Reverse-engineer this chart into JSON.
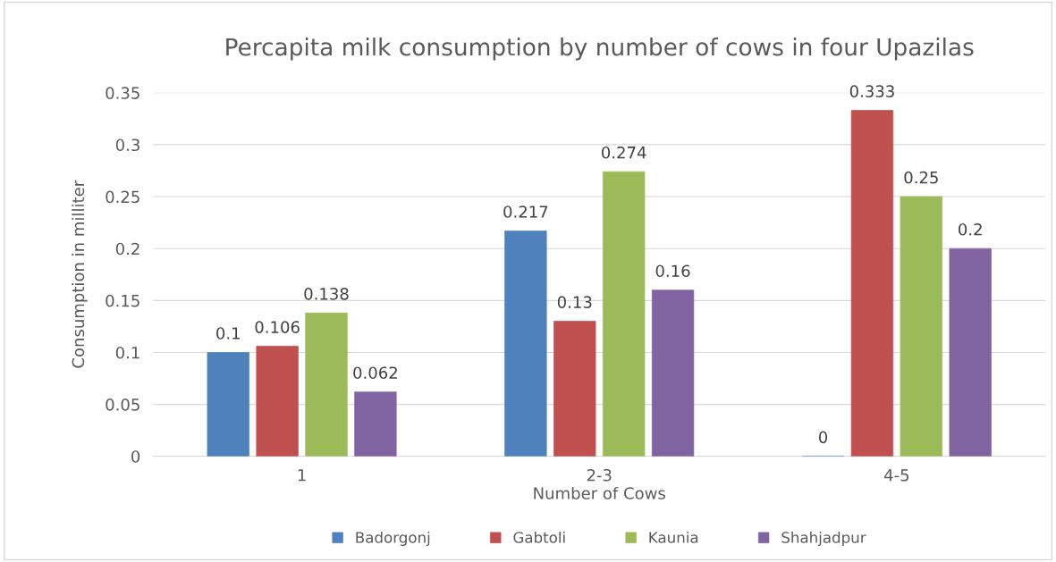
{
  "chart_data": {
    "type": "bar",
    "title": "Percapita milk consumption by number of cows in four Upazilas",
    "xlabel": "Number of Cows",
    "ylabel": "Consumption in milliter",
    "categories": [
      "1",
      "2-3",
      "4-5"
    ],
    "series": [
      {
        "name": "Badorgonj",
        "color": "#4f81bd",
        "values": [
          0.1,
          0.217,
          0
        ]
      },
      {
        "name": "Gabtoli",
        "color": "#c0504d",
        "values": [
          0.106,
          0.13,
          0.333
        ]
      },
      {
        "name": "Kaunia",
        "color": "#9bbb59",
        "values": [
          0.138,
          0.274,
          0.25
        ]
      },
      {
        "name": "Shahjadpur",
        "color": "#8064a2",
        "values": [
          0.062,
          0.16,
          0.2
        ]
      }
    ],
    "ylim": [
      0,
      0.35
    ],
    "yticks": [
      0,
      0.05,
      0.1,
      0.15,
      0.2,
      0.25,
      0.3,
      0.35
    ],
    "grid": "y",
    "legend": "bottom",
    "data_labels": true
  }
}
